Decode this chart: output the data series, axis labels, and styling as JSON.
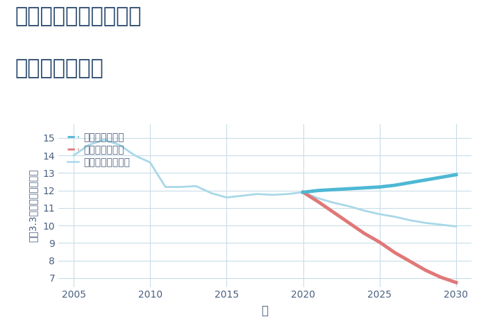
{
  "title_line1": "三重県松阪市清水町の",
  "title_line2": "土地の価格推移",
  "xlabel": "年",
  "ylabel": "坪（3.3㎡）単価（万円）",
  "ylim": [
    6.5,
    15.8
  ],
  "xlim": [
    2004,
    2031
  ],
  "yticks": [
    7,
    8,
    9,
    10,
    11,
    12,
    13,
    14,
    15
  ],
  "xticks": [
    2005,
    2010,
    2015,
    2020,
    2025,
    2030
  ],
  "good_scenario": {
    "x": [
      2020,
      2021,
      2022,
      2023,
      2024,
      2025,
      2026,
      2027,
      2028,
      2029,
      2030
    ],
    "y": [
      11.9,
      12.0,
      12.05,
      12.1,
      12.15,
      12.2,
      12.3,
      12.45,
      12.6,
      12.75,
      12.9
    ],
    "color": "#4db8d4",
    "linewidth": 3.5,
    "label": "グッドシナリオ"
  },
  "bad_scenario": {
    "x": [
      2020,
      2021,
      2022,
      2023,
      2024,
      2025,
      2026,
      2027,
      2028,
      2029,
      2030
    ],
    "y": [
      11.9,
      11.35,
      10.75,
      10.15,
      9.55,
      9.05,
      8.45,
      7.95,
      7.45,
      7.05,
      6.75
    ],
    "color": "#e07878",
    "linewidth": 3.5,
    "label": "バッドシナリオ"
  },
  "normal_scenario": {
    "x": [
      2005,
      2006,
      2007,
      2008,
      2009,
      2010,
      2011,
      2012,
      2013,
      2014,
      2015,
      2016,
      2017,
      2018,
      2019,
      2020,
      2021,
      2022,
      2023,
      2024,
      2025,
      2026,
      2027,
      2028,
      2029,
      2030
    ],
    "y": [
      14.0,
      14.6,
      14.9,
      14.6,
      14.0,
      13.6,
      12.2,
      12.2,
      12.25,
      11.85,
      11.6,
      11.7,
      11.8,
      11.75,
      11.8,
      11.9,
      11.55,
      11.3,
      11.1,
      10.85,
      10.65,
      10.5,
      10.3,
      10.15,
      10.05,
      9.95
    ],
    "color": "#a8d8e8",
    "linewidth": 2.0,
    "label": "ノーマルシナリオ"
  },
  "bg_color": "#ffffff",
  "grid_color": "#c8dce8",
  "title_color": "#2c4a6e",
  "legend_fontsize": 10,
  "title_fontsize": 22,
  "axis_label_color": "#4a6080",
  "tick_color": "#4a6080"
}
